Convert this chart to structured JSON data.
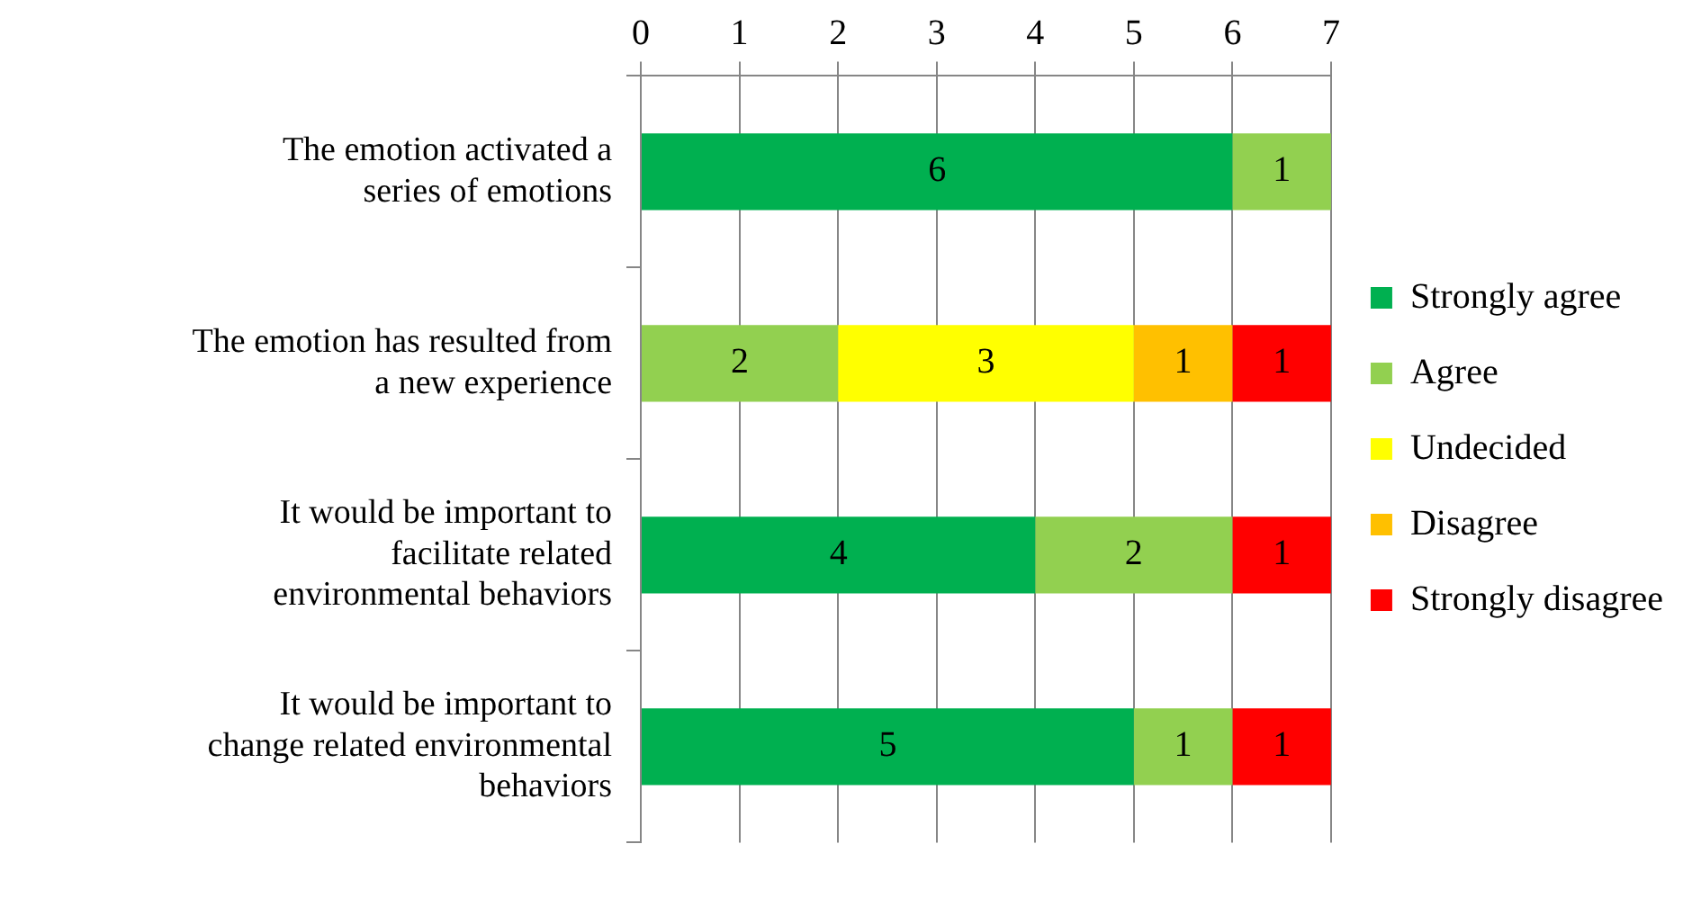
{
  "chart_data": {
    "type": "bar",
    "orientation": "horizontal",
    "stacked": true,
    "categories": [
      "The emotion activated a series of emotions",
      "The emotion has resulted from a new experience",
      "It would be important to facilitate related environmental behaviors",
      "It would be important to change related environmental behaviors"
    ],
    "series": [
      {
        "name": "Strongly agree",
        "color": "#00b050",
        "values": [
          6,
          null,
          4,
          5
        ]
      },
      {
        "name": "Agree",
        "color": "#92d050",
        "values": [
          1,
          2,
          2,
          1
        ]
      },
      {
        "name": "Undecided",
        "color": "#ffff00",
        "values": [
          null,
          3,
          null,
          null
        ]
      },
      {
        "name": "Disagree",
        "color": "#ffc000",
        "values": [
          null,
          1,
          null,
          null
        ]
      },
      {
        "name": "Strongly disagree",
        "color": "#ff0000",
        "values": [
          null,
          1,
          1,
          1
        ]
      }
    ],
    "xlim": [
      0,
      7
    ],
    "xticks": [
      0,
      1,
      2,
      3,
      4,
      5,
      6,
      7
    ],
    "grid": "x",
    "legend": "right",
    "data_labels": true
  }
}
